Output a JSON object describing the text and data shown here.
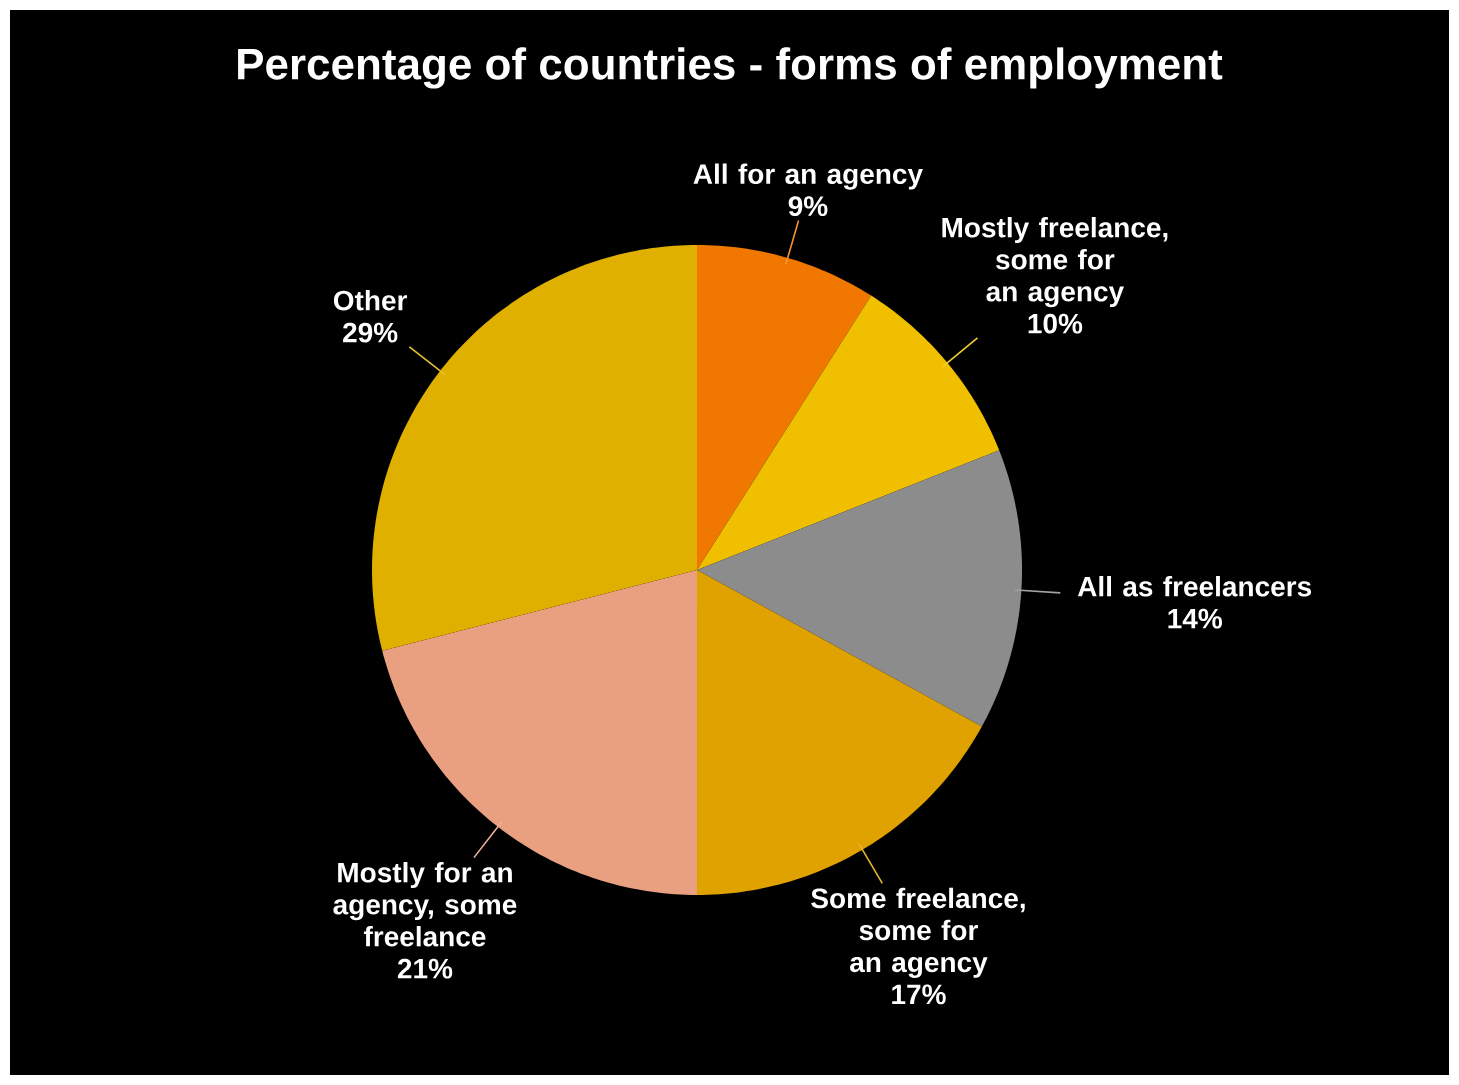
{
  "chart_data": {
    "type": "pie",
    "title": "Percentage of countries - forms of employment",
    "categories": [
      "All for an agency",
      "Mostly freelance, some for an agency",
      "All as freelancers",
      "Some freelance, some for an agency",
      "Mostly for an agency, some freelance",
      "Other"
    ],
    "values": [
      9,
      10,
      14,
      17,
      21,
      29
    ],
    "value_labels": [
      "9%",
      "10%",
      "14%",
      "17%",
      "21%",
      "29%"
    ],
    "colors": [
      "#f07800",
      "#f0c000",
      "#8c8c8c",
      "#e0a200",
      "#e8a080",
      "#e0b000"
    ]
  }
}
